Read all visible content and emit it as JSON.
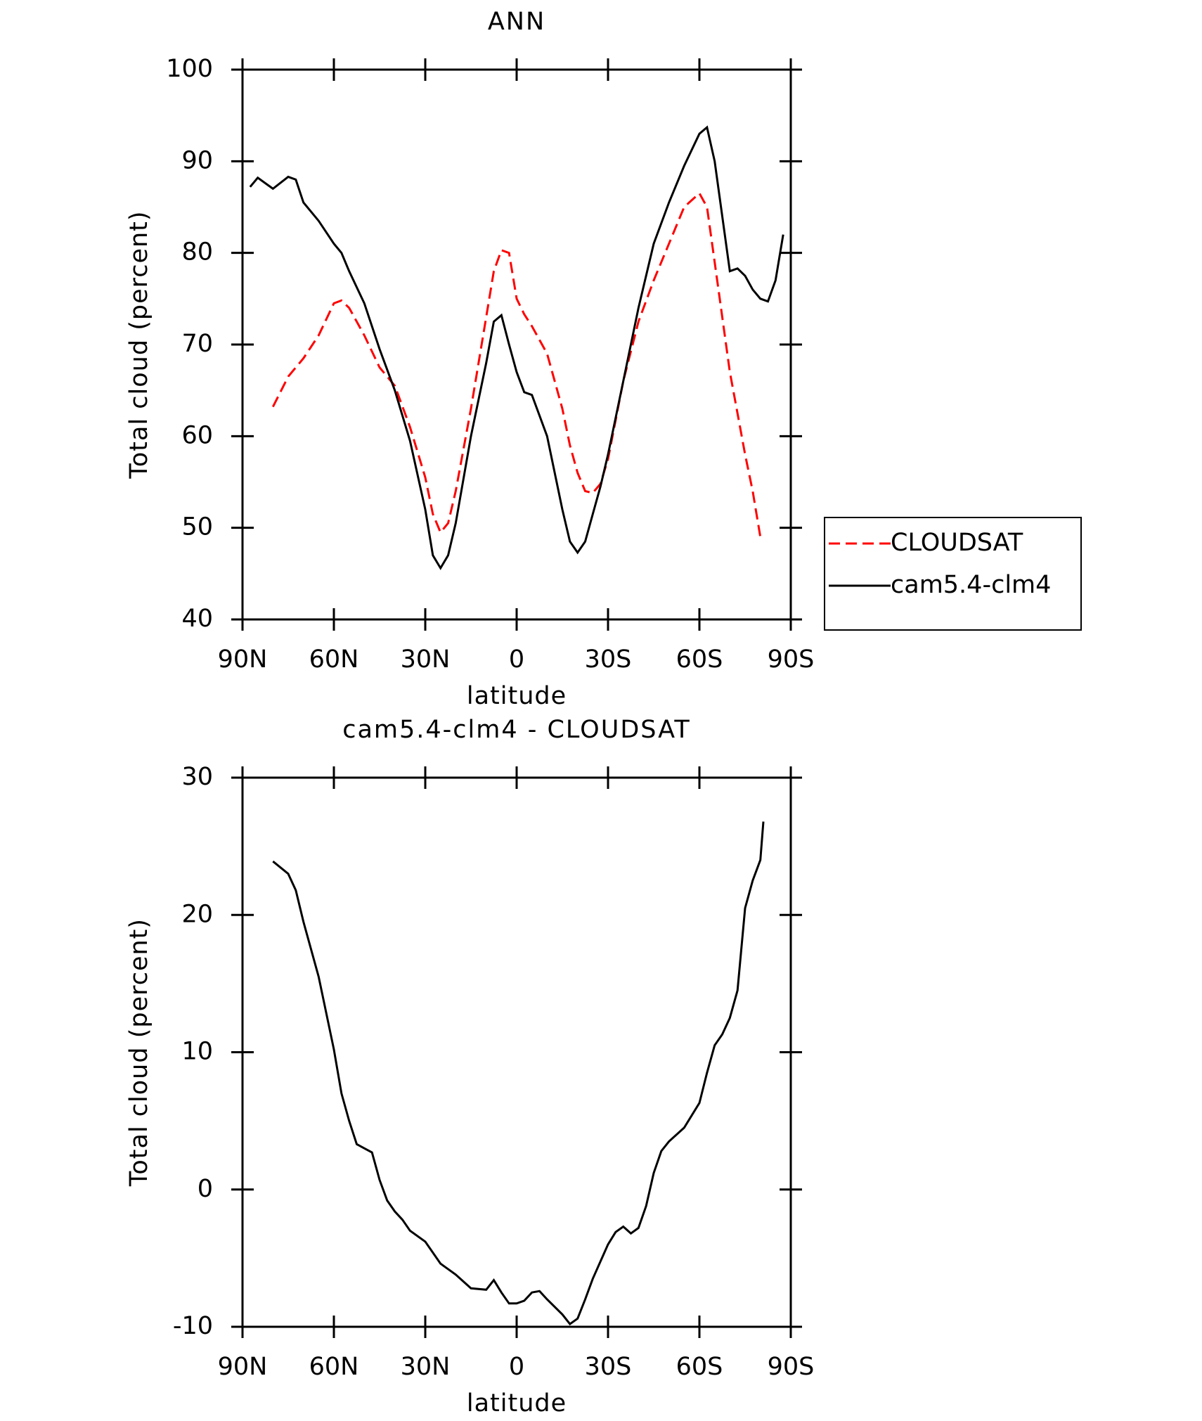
{
  "chart_data": [
    {
      "type": "line",
      "title": "ANN",
      "xlabel": "latitude",
      "ylabel": "Total cloud (percent)",
      "x": [
        87.5,
        85,
        80,
        75,
        72.5,
        70,
        65,
        60,
        57.5,
        55,
        50,
        45,
        40,
        35,
        30,
        27.5,
        25,
        22.5,
        20,
        15,
        10,
        7.5,
        5,
        2.5,
        0,
        -2.5,
        -5,
        -10,
        -15,
        -17.5,
        -20,
        -22.5,
        -25,
        -27.5,
        -30,
        -35,
        -40,
        -45,
        -50,
        -55,
        -60,
        -62.5,
        -65,
        -70,
        -72.5,
        -75,
        -77.5,
        -80,
        -82.5,
        -85,
        -87.5
      ],
      "series": [
        {
          "name": "CLOUDSAT",
          "color": "#ff0000",
          "linestyle": "dashed",
          "values": [
            null,
            null,
            63.2,
            66.5,
            67.5,
            68.5,
            71,
            74.5,
            74.8,
            74,
            71,
            67.5,
            65.5,
            61,
            55.5,
            51.5,
            49.5,
            50.5,
            54,
            63,
            73,
            78,
            80.3,
            80,
            75,
            73.3,
            72,
            69,
            63,
            59,
            56,
            54,
            53.8,
            54.8,
            57.5,
            66,
            72.5,
            77,
            81,
            85,
            86.5,
            85,
            79,
            67,
            62.5,
            58,
            54,
            49,
            null,
            null,
            null
          ]
        },
        {
          "name": "cam5.4-clm4",
          "color": "#000000",
          "linestyle": "solid",
          "values": [
            87.2,
            88.2,
            87,
            88.3,
            88,
            85.5,
            83.5,
            81,
            80,
            78,
            74.5,
            69.5,
            65,
            59.5,
            52,
            47,
            45.6,
            47,
            50.5,
            60,
            68,
            72.5,
            73.2,
            70,
            67,
            64.8,
            64.5,
            60,
            52,
            48.5,
            47.3,
            48.5,
            51.5,
            54.5,
            58,
            66,
            74,
            81,
            85.5,
            89.5,
            93,
            93.7,
            90,
            78,
            78.3,
            77.5,
            76,
            75,
            74.7,
            77,
            82
          ]
        }
      ],
      "xlim": [
        90,
        -90
      ],
      "xticks": [
        {
          "value": 90,
          "label": "90N"
        },
        {
          "value": 60,
          "label": "60N"
        },
        {
          "value": 30,
          "label": "30N"
        },
        0,
        {
          "value": -30,
          "label": "30S"
        },
        {
          "value": -60,
          "label": "60S"
        },
        {
          "value": -90,
          "label": "90S"
        }
      ],
      "ylim": [
        40,
        100
      ],
      "yticks": [
        40,
        50,
        60,
        70,
        80,
        90,
        100
      ],
      "legend": "right"
    },
    {
      "type": "line",
      "title": "cam5.4-clm4 - CLOUDSAT",
      "xlabel": "latitude",
      "ylabel": "Total cloud (percent)",
      "x": [
        80,
        75,
        72.5,
        70,
        65,
        60,
        57.5,
        55,
        52.5,
        50,
        47.5,
        45,
        42.5,
        40,
        37.5,
        35,
        30,
        25,
        20,
        15,
        10,
        7.5,
        5,
        2.5,
        0,
        -2.5,
        -5,
        -7.5,
        -10,
        -15,
        -17.5,
        -20,
        -22.5,
        -25,
        -30,
        -32.5,
        -35,
        -37.5,
        -40,
        -42.5,
        -45,
        -47.5,
        -50,
        -55,
        -60,
        -62.5,
        -65,
        -67.5,
        -70,
        -72.5,
        -75,
        -77.5,
        -80,
        -81
      ],
      "series": [
        {
          "color": "#000000",
          "linestyle": "solid",
          "values": [
            23.9,
            23,
            21.8,
            19.5,
            15.5,
            10.2,
            7,
            5,
            3.3,
            3,
            2.7,
            0.7,
            -0.8,
            -1.6,
            -2.2,
            -3,
            -3.8,
            -5.4,
            -6.2,
            -7.2,
            -7.3,
            -6.6,
            -7.5,
            -8.3,
            -8.3,
            -8.1,
            -7.5,
            -7.4,
            -8,
            -9.1,
            -9.8,
            -9.4,
            -8,
            -6.5,
            -4,
            -3.1,
            -2.7,
            -3.2,
            -2.8,
            -1.2,
            1.2,
            2.8,
            3.5,
            4.5,
            6.3,
            8.5,
            10.5,
            11.3,
            12.5,
            14.5,
            20.5,
            22.5,
            24,
            26.8
          ]
        }
      ],
      "xlim": [
        90,
        -90
      ],
      "xticks": [
        {
          "value": 90,
          "label": "90N"
        },
        {
          "value": 60,
          "label": "60N"
        },
        {
          "value": 30,
          "label": "30N"
        },
        0,
        {
          "value": -30,
          "label": "30S"
        },
        {
          "value": -60,
          "label": "60S"
        },
        {
          "value": -90,
          "label": "90S"
        }
      ],
      "ylim": [
        -10,
        30
      ],
      "yticks": [
        -10,
        0,
        10,
        20,
        30
      ]
    }
  ]
}
